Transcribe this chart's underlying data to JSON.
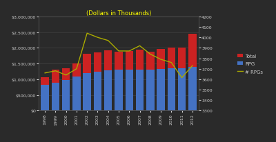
{
  "years": [
    1998,
    1999,
    2000,
    2001,
    2002,
    2003,
    2004,
    2005,
    2006,
    2007,
    2008,
    2009,
    2010,
    2011,
    2012
  ],
  "rpg_budget": [
    830000,
    890000,
    970000,
    1080000,
    1200000,
    1250000,
    1290000,
    1310000,
    1310000,
    1310000,
    1310000,
    1330000,
    1350000,
    1340000,
    1390000
  ],
  "total_budget": [
    1060000,
    1310000,
    1360000,
    1500000,
    1810000,
    1860000,
    1910000,
    1880000,
    1890000,
    1940000,
    1870000,
    1960000,
    2010000,
    2000000,
    2450000
  ],
  "num_rpgs": [
    3660,
    3680,
    3640,
    3700,
    4040,
    4000,
    3970,
    3870,
    3870,
    3920,
    3840,
    3790,
    3760,
    3615,
    3730
  ],
  "background_color": "#2a2a2a",
  "bar_color_rpg": "#4472c4",
  "bar_color_total": "#cc2222",
  "line_color": "#aaaa00",
  "title": "(Dollars in Thousands)",
  "title_color": "#ffff00",
  "tick_color": "#cccccc",
  "left_ylim": [
    0,
    3000000
  ],
  "right_ylim": [
    3300,
    4200
  ],
  "left_yticks": [
    0,
    500000,
    1000000,
    1500000,
    2000000,
    2500000,
    3000000
  ],
  "right_yticks": [
    3300,
    3400,
    3500,
    3600,
    3700,
    3800,
    3900,
    4000,
    4100,
    4200
  ],
  "legend_labels": [
    "Total",
    "RPG",
    "# RPGs"
  ],
  "legend_colors": [
    "#cc2222",
    "#4472c4",
    "#aaaa00"
  ]
}
